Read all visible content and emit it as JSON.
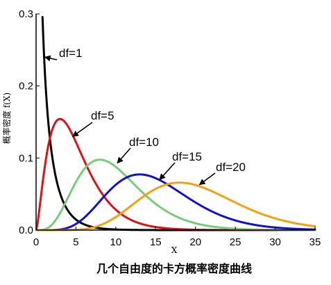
{
  "chart_data": {
    "type": "line",
    "title": "几个自由度的卡方概率密度曲线",
    "xlabel": "X",
    "ylabel": "概率密度 f(X)",
    "xlim": [
      0,
      35
    ],
    "ylim": [
      0,
      0.3
    ],
    "xticks": [
      "0",
      "5",
      "10",
      "15",
      "20",
      "25",
      "30",
      "35"
    ],
    "yticks": [
      "0.0",
      "0.1",
      "0.2",
      "0.3"
    ],
    "grid": false,
    "series": [
      {
        "name": "df=1",
        "df": 1,
        "color": "#000000"
      },
      {
        "name": "df=5",
        "df": 5,
        "color": "#dd1111"
      },
      {
        "name": "df=10",
        "df": 10,
        "color": "#77cc77"
      },
      {
        "name": "df=15",
        "df": 15,
        "color": "#1111cc"
      },
      {
        "name": "df=20",
        "df": 20,
        "color": "#f5a010"
      }
    ],
    "annotations": [
      {
        "text": "df=1",
        "series": "df=1",
        "target_x": 1.1,
        "target_y": 0.24
      },
      {
        "text": "df=5",
        "series": "df=5",
        "target_x": 4.6,
        "target_y": 0.13
      },
      {
        "text": "df=10",
        "series": "df=10",
        "target_x": 10.2,
        "target_y": 0.093
      },
      {
        "text": "df=15",
        "series": "df=15",
        "target_x": 15.5,
        "target_y": 0.07
      },
      {
        "text": "df=20",
        "series": "df=20",
        "target_x": 20.5,
        "target_y": 0.063
      }
    ]
  }
}
